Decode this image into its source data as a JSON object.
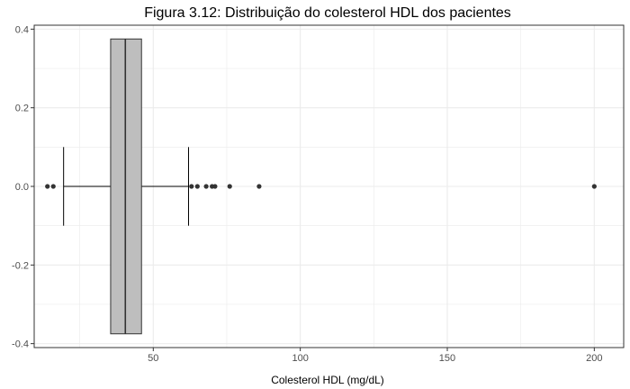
{
  "chart_data": {
    "type": "boxplot",
    "title": "Figura 3.12: Distribuição do colesterol HDL dos pacientes",
    "xlabel": "Colesterol HDL (mg/dL)",
    "ylabel": "",
    "xlim": [
      9.5,
      210
    ],
    "ylim": [
      -0.41,
      0.41
    ],
    "x_ticks": [
      50,
      100,
      150,
      200
    ],
    "x_tick_labels": [
      "50",
      "100",
      "150",
      "200"
    ],
    "x_minor_ticks": [
      25,
      75,
      125,
      175
    ],
    "y_ticks": [
      -0.4,
      -0.2,
      0.0,
      0.2,
      0.4
    ],
    "y_tick_labels": [
      "-0.4",
      "-0.2",
      "0.0",
      "0.2",
      "0.4"
    ],
    "y_minor_ticks": [
      -0.3,
      -0.1,
      0.1,
      0.3
    ],
    "grid": true,
    "legend": "none",
    "box": {
      "whisker_low": 19.5,
      "q1": 35.5,
      "median": 40.5,
      "q3": 46.0,
      "whisker_high": 62.0,
      "box_half_height": 0.375,
      "whisker_cap_half_height": 0.1
    },
    "outliers": [
      14,
      16,
      63,
      65,
      68,
      70,
      71,
      76,
      86,
      200
    ],
    "colors": {
      "box_fill": "#bebebe",
      "box_stroke": "#333333",
      "outlier": "#333333",
      "grid": "#ebebeb",
      "panel_border": "#333333",
      "whisker": "#000000"
    }
  }
}
